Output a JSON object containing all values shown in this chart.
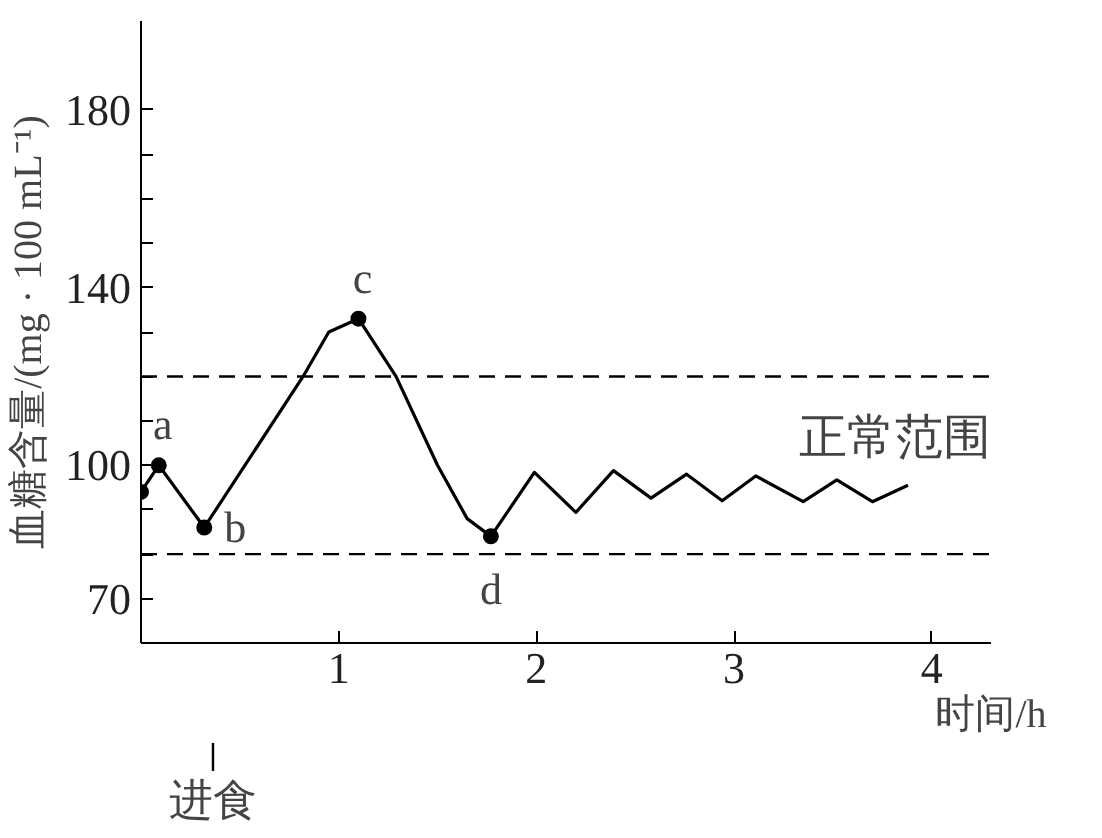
{
  "chart_data": {
    "type": "line",
    "xlabel": "时间/h",
    "ylabel": "血糖含量/(mg · 100 mL⁻¹)",
    "xlim": [
      0,
      4.3
    ],
    "xticks": [
      1,
      2,
      3,
      4
    ],
    "ylim": [
      60,
      200
    ],
    "yticks": [
      {
        "value": 70,
        "label": "70"
      },
      {
        "value": 80,
        "label": null
      },
      {
        "value": 90,
        "label": null
      },
      {
        "value": 100,
        "label": "100"
      },
      {
        "value": 110,
        "label": null
      },
      {
        "value": 120,
        "label": null
      },
      {
        "value": 130,
        "label": null
      },
      {
        "value": 140,
        "label": "140"
      },
      {
        "value": 150,
        "label": null
      },
      {
        "value": 160,
        "label": null
      },
      {
        "value": 170,
        "label": null
      },
      {
        "value": 180,
        "label": "180"
      }
    ],
    "grid": false,
    "series": [
      {
        "color": "#000000",
        "marker": "none",
        "x": [
          0,
          0.09,
          0.32,
          0.82,
          0.95,
          1.1,
          1.29,
          1.5,
          1.65,
          1.77,
          1.99,
          2.2,
          2.39,
          2.58,
          2.76,
          2.94,
          3.11,
          3.35,
          3.52,
          3.7,
          3.88
        ],
        "values": [
          94,
          100,
          86,
          120,
          130,
          133,
          120,
          100,
          88,
          84,
          98.4,
          89.4,
          98.8,
          92.6,
          98,
          92,
          97.6,
          91.8,
          96.7,
          91.8,
          95.5
        ]
      },
      {
        "type": "scatter",
        "color": "#000000",
        "marker": "circle",
        "x": [
          0,
          0.09,
          0.32,
          1.1,
          1.77
        ],
        "values": [
          94,
          100,
          86,
          133,
          84
        ]
      }
    ],
    "ref_lines": [
      {
        "axis": "y",
        "value": 120,
        "line_style": "dashed",
        "color": "#000000"
      },
      {
        "axis": "y",
        "value": 80,
        "line_style": "dashed",
        "color": "#000000"
      }
    ],
    "annotations": [
      {
        "text": "a",
        "x": 0.09,
        "y": 100
      },
      {
        "text": "b",
        "x": 0.32,
        "y": 86
      },
      {
        "text": "c",
        "x": 1.1,
        "y": 133
      },
      {
        "text": "d",
        "x": 1.77,
        "y": 84
      },
      "进食",
      "正常范围"
    ]
  }
}
